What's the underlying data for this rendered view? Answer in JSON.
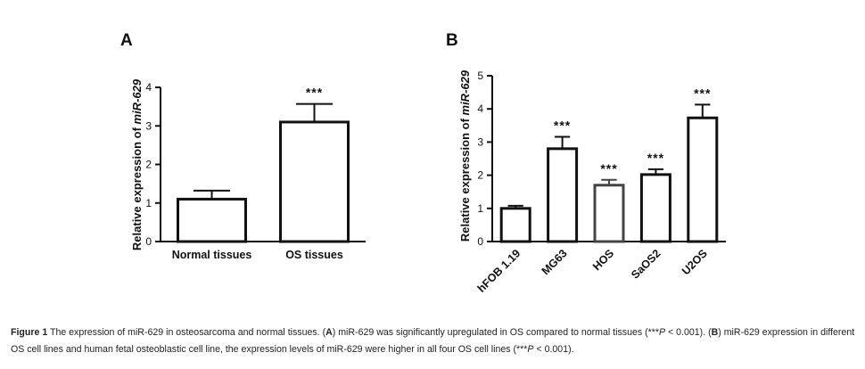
{
  "colors": {
    "axis": "#111111",
    "bar_stroke": "#111111",
    "bar_fill": "#ffffff",
    "hos_stroke": "#444444"
  },
  "chart_data": [
    {
      "panel": "A",
      "type": "bar",
      "categories": [
        "Normal tissues",
        "OS tissues"
      ],
      "values": [
        1.1,
        3.1
      ],
      "errors": [
        0.22,
        0.47
      ],
      "significance": [
        "",
        "***"
      ],
      "ylabel_prefix": "Relative expression of ",
      "ylabel_gene": "miR-629",
      "ylim": [
        0,
        4
      ],
      "yticks": [
        0,
        1,
        2,
        3,
        4
      ],
      "xlabel": ""
    },
    {
      "panel": "B",
      "type": "bar",
      "categories": [
        "hFOB 1.19",
        "MG63",
        "HOS",
        "SaOS2",
        "U2OS"
      ],
      "values": [
        1.0,
        2.8,
        1.7,
        2.02,
        3.73
      ],
      "errors": [
        0.08,
        0.36,
        0.16,
        0.16,
        0.4
      ],
      "significance": [
        "",
        "***",
        "***",
        "***",
        "***"
      ],
      "ylabel_prefix": "Relative expression of ",
      "ylabel_gene": "miR-629",
      "ylim": [
        0,
        5
      ],
      "yticks": [
        0,
        1,
        2,
        3,
        4,
        5
      ],
      "xlabel": ""
    }
  ],
  "caption": {
    "figure_label": "Figure 1",
    "title": " The expression of miR-629 in osteosarcoma and normal tissues. (",
    "a_label": "A",
    "a_text": ") miR-629 was significantly upregulated in OS compared to normal tissues (",
    "a_stars": "***",
    "p_symbol": "P",
    "a_p": " < 0.001). (",
    "b_label": "B",
    "b_text": ") miR-629 expression in different OS cell lines and human fetal osteoblastic cell line, the expression levels of miR-629 were higher in all four OS cell lines (",
    "b_stars": "***",
    "b_p": " < 0.001)."
  }
}
